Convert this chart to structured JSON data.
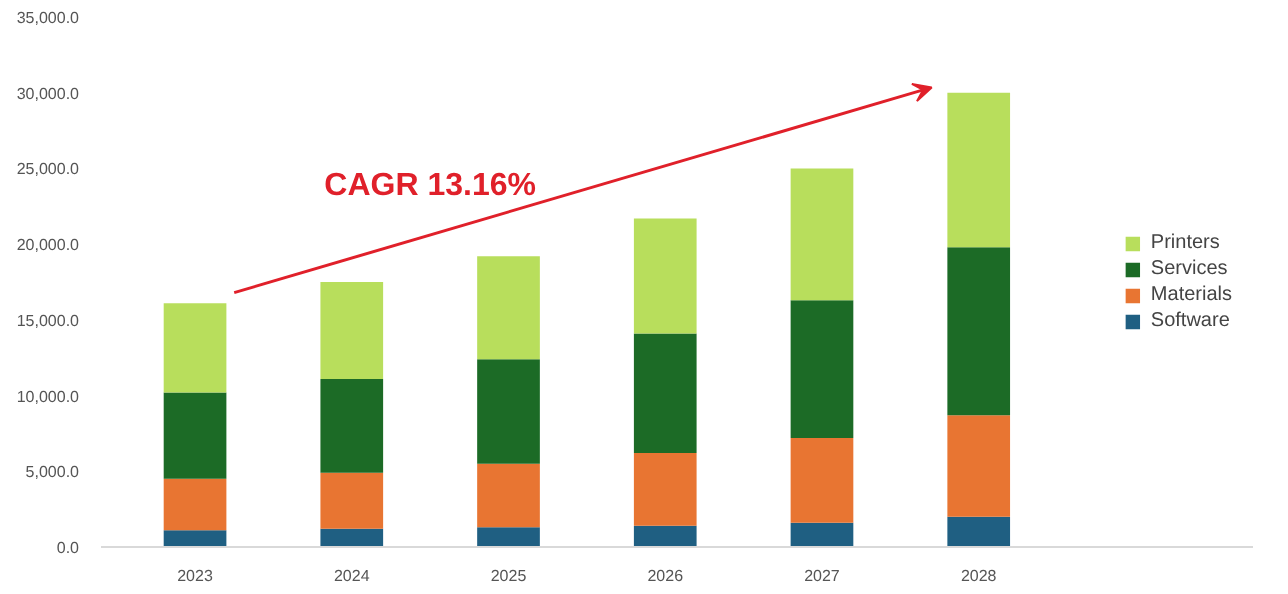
{
  "chart_data": {
    "type": "bar",
    "stacked": true,
    "categories": [
      "2023",
      "2024",
      "2025",
      "2026",
      "2027",
      "2028"
    ],
    "series": [
      {
        "name": "Software",
        "color": "#1f5f82",
        "values": [
          1100,
          1200,
          1300,
          1400,
          1600,
          2000
        ]
      },
      {
        "name": "Materials",
        "color": "#e87532",
        "values": [
          3400,
          3700,
          4200,
          4800,
          5600,
          6700
        ]
      },
      {
        "name": "Services",
        "color": "#1c6b26",
        "values": [
          5700,
          6200,
          6900,
          7900,
          9100,
          11100
        ]
      },
      {
        "name": "Printers",
        "color": "#b8de5c",
        "values": [
          5900,
          6400,
          6800,
          7600,
          8700,
          10200
        ]
      }
    ],
    "ylim": [
      0,
      35000
    ],
    "yticks": [
      {
        "value": 0,
        "label": "0.0"
      },
      {
        "value": 5000,
        "label": "5,000.0"
      },
      {
        "value": 10000,
        "label": "10,000.0"
      },
      {
        "value": 15000,
        "label": "15,000.0"
      },
      {
        "value": 20000,
        "label": "20,000.0"
      },
      {
        "value": 25000,
        "label": "25,000.0"
      },
      {
        "value": 30000,
        "label": "30,000.0"
      },
      {
        "value": 35000,
        "label": "35,000.0"
      }
    ],
    "grid": false,
    "legend": "right",
    "annotations": [
      "CAGR 13.16%"
    ]
  }
}
